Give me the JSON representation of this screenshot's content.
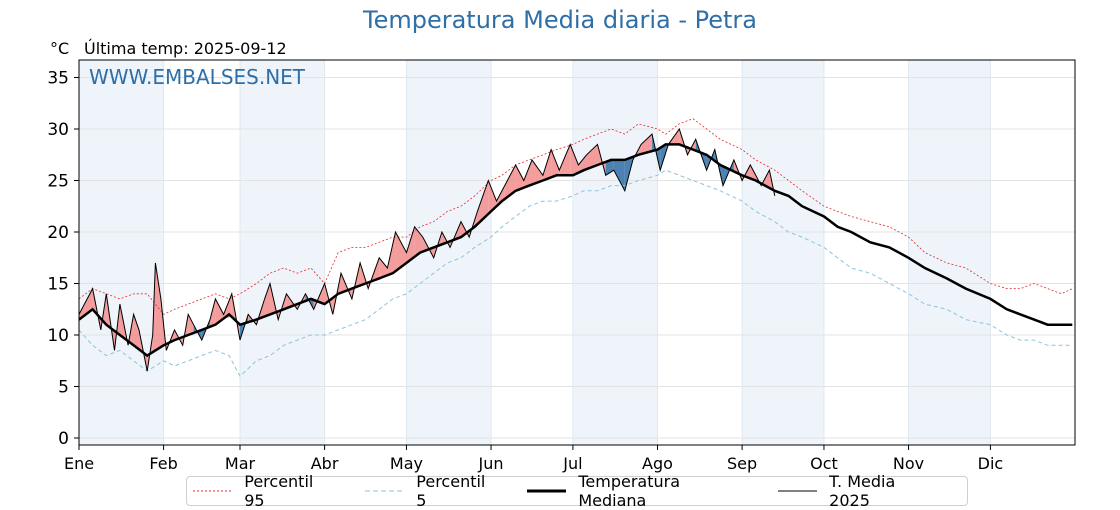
{
  "header": {
    "title": "Temperatura Media diaria - Petra",
    "unit": "°C",
    "last_update": "Última temp: 2025-09-12"
  },
  "colors": {
    "title": "#2f6fa7",
    "p95": "#e8262a",
    "p5": "#8ec3dd",
    "median": "#000000",
    "current": "#000000",
    "above_fill": "#f28c8c",
    "below_fill": "#2e6da4",
    "month_band": "#eef4fa"
  },
  "chart_data": {
    "type": "line",
    "watermark": "WWW.EMBALSES.NET",
    "ylim": [
      0,
      36
    ],
    "yticks": [
      0,
      5,
      10,
      15,
      20,
      25,
      30,
      35
    ],
    "x_ticks": [
      "Ene",
      "Feb",
      "Mar",
      "Abr",
      "May",
      "Jun",
      "Jul",
      "Ago",
      "Sep",
      "Oct",
      "Nov",
      "Dic"
    ],
    "x_tick_days": [
      0,
      31,
      59,
      90,
      120,
      151,
      181,
      212,
      243,
      273,
      304,
      334
    ],
    "x_max_day": 365,
    "grid": true,
    "legend": "bottom",
    "series": [
      {
        "name": "Percentil 95",
        "style": "dotted-red",
        "x": [
          0,
          5,
          10,
          15,
          20,
          25,
          31,
          35,
          40,
          45,
          50,
          55,
          59,
          65,
          70,
          75,
          80,
          85,
          90,
          95,
          100,
          105,
          110,
          115,
          120,
          125,
          130,
          135,
          140,
          145,
          151,
          155,
          160,
          165,
          170,
          175,
          181,
          185,
          190,
          195,
          200,
          205,
          212,
          215,
          220,
          225,
          230,
          235,
          243,
          248,
          255,
          260,
          265,
          273,
          278,
          283,
          290,
          297,
          304,
          310,
          318,
          325,
          334,
          340,
          345,
          350,
          355,
          360,
          364
        ],
        "values": [
          13.5,
          14.5,
          14.0,
          13.5,
          14.0,
          14.0,
          12.0,
          12.5,
          13.0,
          13.5,
          14.0,
          13.5,
          14.0,
          15.0,
          16.0,
          16.5,
          16.0,
          16.5,
          15.0,
          18.0,
          18.5,
          18.5,
          19.0,
          19.5,
          19.5,
          20.5,
          21.0,
          22.0,
          22.5,
          23.5,
          25.0,
          25.5,
          26.5,
          27.0,
          27.5,
          28.0,
          28.5,
          29.0,
          29.5,
          30.0,
          29.5,
          30.5,
          30.0,
          29.5,
          30.5,
          31.0,
          30.0,
          29.0,
          28.0,
          27.0,
          26.0,
          25.0,
          24.0,
          22.5,
          22.0,
          21.5,
          21.0,
          20.5,
          19.5,
          18.0,
          17.0,
          16.5,
          15.0,
          14.5,
          14.5,
          15.0,
          14.5,
          14.0,
          14.5
        ]
      },
      {
        "name": "Percentil 5",
        "style": "dashed-blue",
        "x": [
          0,
          5,
          10,
          15,
          20,
          25,
          31,
          35,
          40,
          45,
          50,
          55,
          59,
          65,
          70,
          75,
          80,
          85,
          90,
          95,
          100,
          105,
          110,
          115,
          120,
          125,
          130,
          135,
          140,
          145,
          151,
          155,
          160,
          165,
          170,
          175,
          181,
          185,
          190,
          195,
          200,
          205,
          212,
          215,
          220,
          225,
          230,
          235,
          243,
          248,
          255,
          260,
          265,
          273,
          278,
          283,
          290,
          297,
          304,
          310,
          318,
          325,
          334,
          340,
          345,
          350,
          355,
          360,
          364
        ],
        "values": [
          10.5,
          9.0,
          8.0,
          8.5,
          7.5,
          6.5,
          7.5,
          7.0,
          7.5,
          8.0,
          8.5,
          8.0,
          6.0,
          7.5,
          8.0,
          9.0,
          9.5,
          10.0,
          10.0,
          10.5,
          11.0,
          11.5,
          12.5,
          13.5,
          14.0,
          15.0,
          16.0,
          17.0,
          17.5,
          18.5,
          19.5,
          20.5,
          21.5,
          22.5,
          23.0,
          23.0,
          23.5,
          24.0,
          24.0,
          24.5,
          24.5,
          25.0,
          25.5,
          26.0,
          25.5,
          25.0,
          24.5,
          24.0,
          23.0,
          22.0,
          21.0,
          20.0,
          19.5,
          18.5,
          17.5,
          16.5,
          16.0,
          15.0,
          14.0,
          13.0,
          12.5,
          11.5,
          11.0,
          10.0,
          9.5,
          9.5,
          9.0,
          9.0,
          9.0
        ]
      },
      {
        "name": "Temperatura Mediana",
        "style": "thick-black",
        "x": [
          0,
          5,
          10,
          15,
          20,
          25,
          31,
          35,
          40,
          45,
          50,
          55,
          59,
          65,
          70,
          75,
          80,
          85,
          90,
          95,
          100,
          105,
          110,
          115,
          120,
          125,
          130,
          135,
          140,
          145,
          151,
          155,
          160,
          165,
          170,
          175,
          181,
          185,
          190,
          195,
          200,
          205,
          212,
          215,
          220,
          225,
          230,
          235,
          243,
          248,
          255,
          260,
          265,
          273,
          278,
          283,
          290,
          297,
          304,
          310,
          318,
          325,
          334,
          340,
          345,
          350,
          355,
          360,
          364
        ],
        "values": [
          11.5,
          12.5,
          11.0,
          10.0,
          9.0,
          8.0,
          9.0,
          9.5,
          10.0,
          10.5,
          11.0,
          12.0,
          11.0,
          11.5,
          12.0,
          12.5,
          13.0,
          13.5,
          13.0,
          14.0,
          14.5,
          15.0,
          15.5,
          16.0,
          17.0,
          18.0,
          18.5,
          19.0,
          19.5,
          20.5,
          22.0,
          23.0,
          24.0,
          24.5,
          25.0,
          25.5,
          25.5,
          26.0,
          26.5,
          27.0,
          27.0,
          27.5,
          28.0,
          28.5,
          28.5,
          28.0,
          27.5,
          26.5,
          25.5,
          25.0,
          24.0,
          23.5,
          22.5,
          21.5,
          20.5,
          20.0,
          19.0,
          18.5,
          17.5,
          16.5,
          15.5,
          14.5,
          13.5,
          12.5,
          12.0,
          11.5,
          11.0,
          11.0,
          11.0
        ]
      },
      {
        "name": "T. Media 2025",
        "style": "thin-black",
        "x": [
          0,
          5,
          8,
          10,
          13,
          15,
          18,
          20,
          22,
          25,
          27,
          28,
          30,
          32,
          35,
          38,
          40,
          42,
          45,
          48,
          50,
          53,
          56,
          59,
          62,
          65,
          68,
          70,
          73,
          76,
          80,
          83,
          86,
          90,
          93,
          96,
          100,
          103,
          106,
          110,
          113,
          116,
          120,
          123,
          126,
          130,
          133,
          136,
          140,
          143,
          146,
          150,
          153,
          156,
          160,
          163,
          166,
          170,
          173,
          176,
          180,
          183,
          186,
          190,
          193,
          196,
          200,
          203,
          206,
          210,
          213,
          216,
          220,
          223,
          226,
          230,
          233,
          236,
          240,
          243,
          246,
          250,
          253,
          255
        ],
        "values": [
          12.0,
          14.5,
          10.5,
          14.0,
          8.5,
          13.0,
          9.0,
          12.0,
          10.5,
          6.5,
          10.0,
          17.0,
          13.5,
          8.5,
          10.5,
          9.0,
          12.0,
          11.0,
          9.5,
          11.5,
          13.5,
          12.0,
          14.0,
          9.5,
          12.0,
          11.0,
          13.5,
          15.0,
          11.5,
          14.0,
          12.5,
          14.0,
          12.5,
          15.0,
          12.0,
          16.0,
          13.5,
          17.0,
          14.5,
          17.5,
          16.5,
          20.0,
          18.0,
          20.5,
          19.5,
          17.5,
          20.0,
          18.5,
          21.0,
          19.5,
          22.0,
          25.0,
          23.0,
          24.5,
          26.5,
          25.0,
          27.0,
          25.5,
          28.0,
          26.0,
          28.5,
          26.5,
          27.5,
          28.5,
          25.5,
          26.0,
          24.0,
          27.0,
          28.5,
          29.5,
          26.0,
          28.5,
          30.0,
          27.5,
          29.0,
          26.0,
          28.0,
          24.5,
          27.0,
          25.0,
          26.5,
          24.5,
          26.0,
          23.5
        ]
      }
    ]
  },
  "legend": {
    "p95": "Percentil 95",
    "p5": "Percentil 5",
    "median": "Temperatura Mediana",
    "current": "T. Media 2025"
  }
}
